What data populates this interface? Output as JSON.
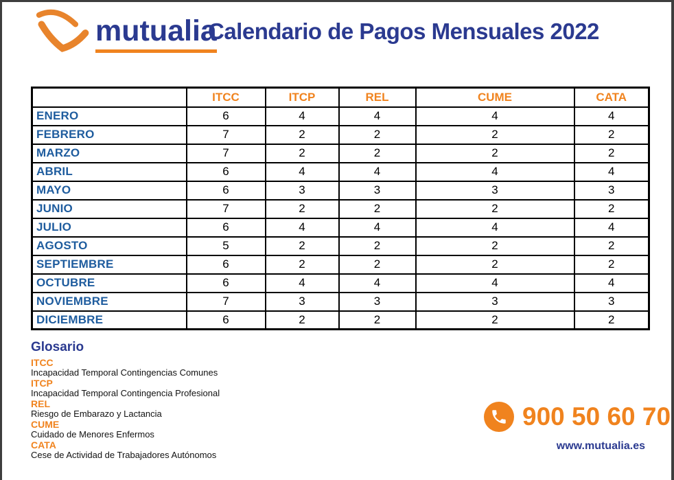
{
  "page": {
    "title": "Calendario de Pagos Mensuales 2022",
    "logo_text": "mutualia"
  },
  "table": {
    "corner_label": "",
    "columns": [
      "ITCC",
      "ITCP",
      "REL",
      "CUME",
      "CATA"
    ],
    "rows": [
      {
        "month": "ENERO",
        "values": [
          6,
          4,
          4,
          4,
          4
        ]
      },
      {
        "month": "FEBRERO",
        "values": [
          7,
          2,
          2,
          2,
          2
        ]
      },
      {
        "month": "MARZO",
        "values": [
          7,
          2,
          2,
          2,
          2
        ]
      },
      {
        "month": "ABRIL",
        "values": [
          6,
          4,
          4,
          4,
          4
        ]
      },
      {
        "month": "MAYO",
        "values": [
          6,
          3,
          3,
          3,
          3
        ]
      },
      {
        "month": "JUNIO",
        "values": [
          7,
          2,
          2,
          2,
          2
        ]
      },
      {
        "month": "JULIO",
        "values": [
          6,
          4,
          4,
          4,
          4
        ]
      },
      {
        "month": "AGOSTO",
        "values": [
          5,
          2,
          2,
          2,
          2
        ]
      },
      {
        "month": "SEPTIEMBRE",
        "values": [
          6,
          2,
          2,
          2,
          2
        ]
      },
      {
        "month": "OCTUBRE",
        "values": [
          6,
          4,
          4,
          4,
          4
        ]
      },
      {
        "month": "NOVIEMBRE",
        "values": [
          7,
          3,
          3,
          3,
          3
        ]
      },
      {
        "month": "DICIEMBRE",
        "values": [
          6,
          2,
          2,
          2,
          2
        ]
      }
    ]
  },
  "glossary": {
    "heading": "Glosario",
    "items": [
      {
        "term": "ITCC",
        "definition": "Incapacidad Temporal Contingencias Comunes"
      },
      {
        "term": "ITCP",
        "definition": "Incapacidad Temporal Contingencia Profesional"
      },
      {
        "term": "REL",
        "definition": "Riesgo de Embarazo y Lactancia"
      },
      {
        "term": "CUME",
        "definition": "Cuidado de Menores Enfermos"
      },
      {
        "term": "CATA",
        "definition": "Cese de Actividad de Trabajadores Autónomos"
      }
    ]
  },
  "contact": {
    "phone_icon": "phone-icon",
    "phone": "900 50 60 70",
    "website": "www.mutualia.es"
  },
  "colors": {
    "brand_navy": "#2b3a90",
    "brand_orange": "#f0831e",
    "month_blue": "#1e5c9e",
    "table_border": "#000000",
    "frame_border": "#3e3e3e"
  }
}
